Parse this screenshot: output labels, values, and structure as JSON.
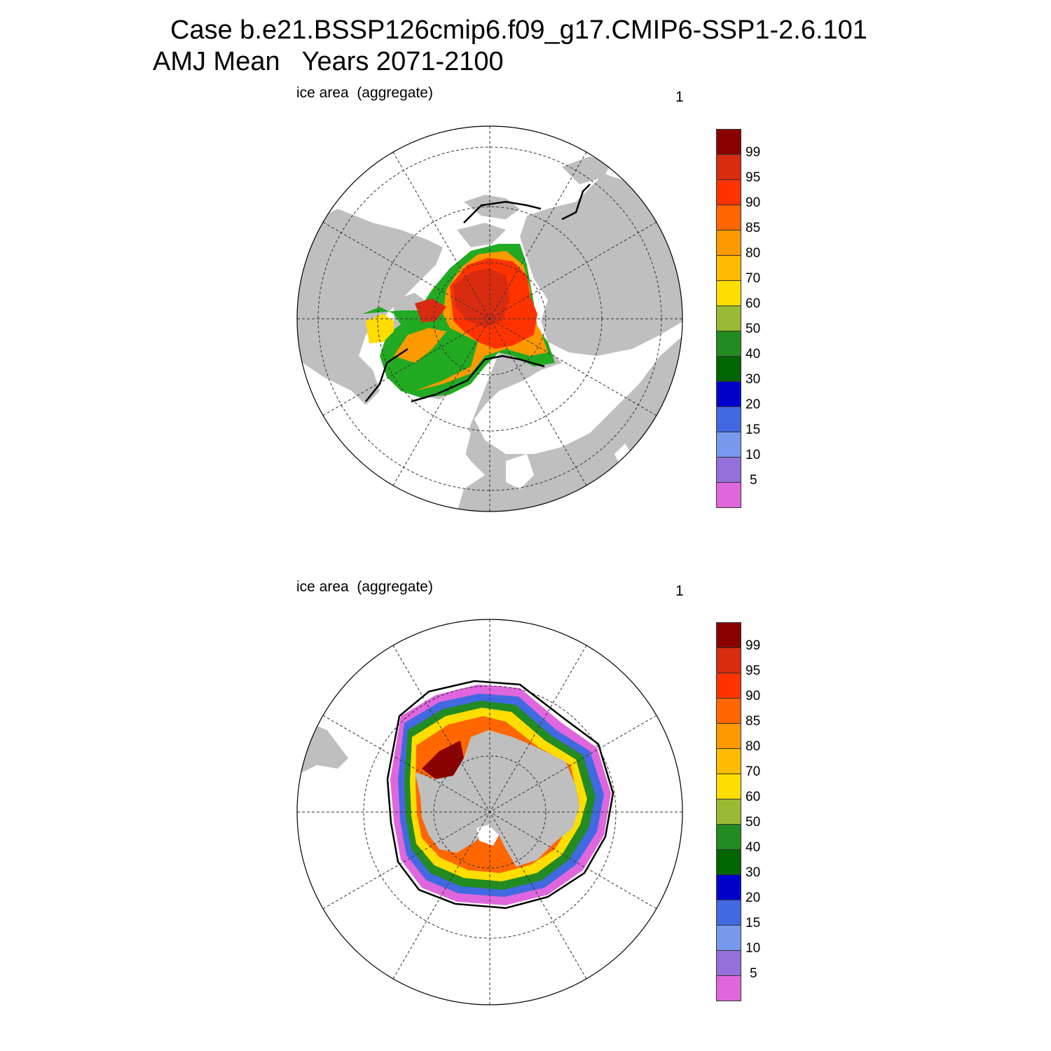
{
  "title": {
    "line1": "Case b.e21.BSSP126cmip6.f09_g17.CMIP6-SSP1-2.6.101",
    "line2": "AMJ Mean   Years 2071-2100"
  },
  "panels": [
    {
      "id": "north",
      "label": "ice area  (aggregate)",
      "units": "1",
      "hemisphere": "Arctic (North Pole)"
    },
    {
      "id": "south",
      "label": "ice area  (aggregate)",
      "units": "1",
      "hemisphere": "Antarctic (South Pole)"
    }
  ],
  "colorbar": {
    "labels": [
      "99",
      "95",
      "90",
      "85",
      "80",
      "70",
      "60",
      "50",
      "40",
      "30",
      "20",
      "15",
      "10",
      "5"
    ],
    "colors": [
      "#8b0000",
      "#d92b10",
      "#ff3300",
      "#ff6600",
      "#ff9900",
      "#ffbb00",
      "#ffdd00",
      "#99bb33",
      "#228b22",
      "#006400",
      "#0000cd",
      "#4169e1",
      "#7799ee",
      "#9370db",
      "#e066dd"
    ]
  },
  "map_style": {
    "land_color": "#bfbfbf",
    "ocean_color": "#ffffff",
    "contour_line_color": "#000000"
  }
}
